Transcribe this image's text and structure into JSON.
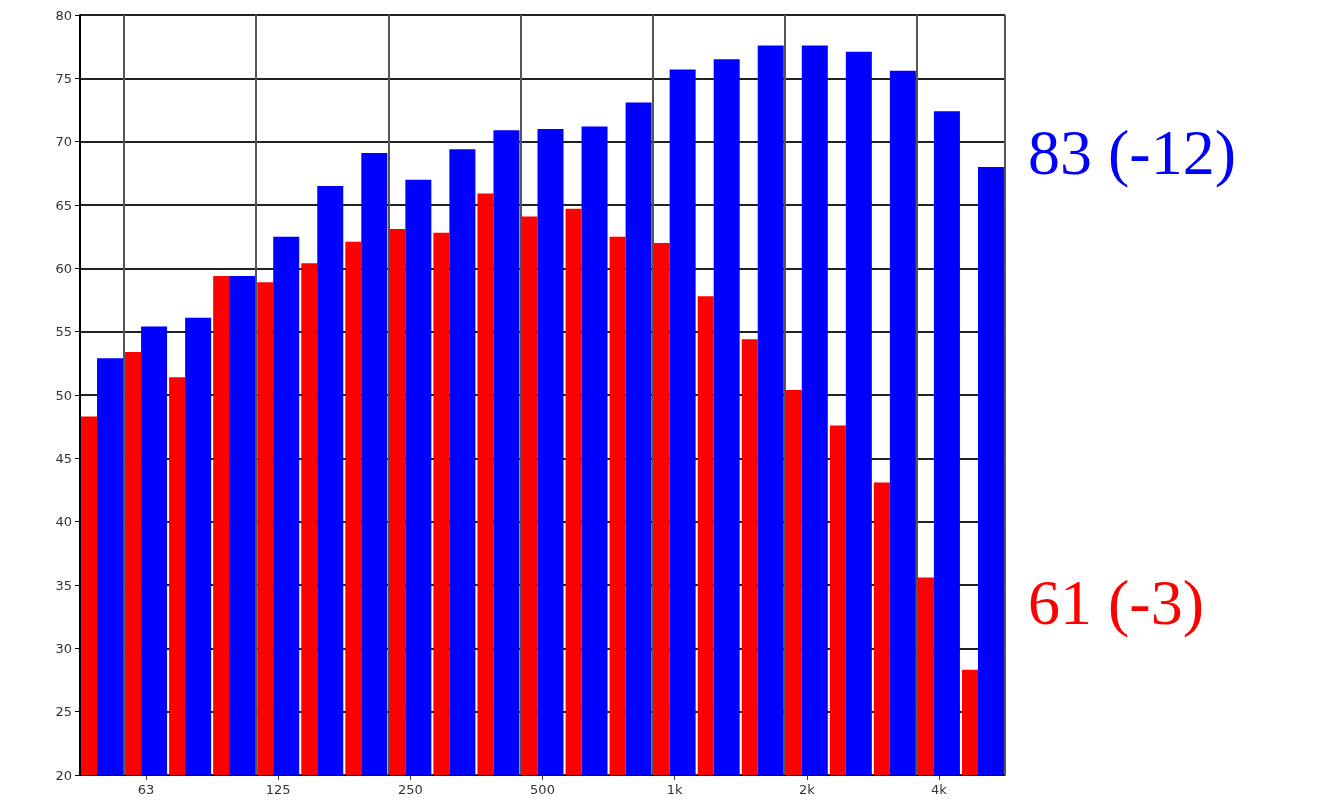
{
  "chart_data": {
    "type": "bar",
    "categories": [
      null,
      "63",
      null,
      null,
      "125",
      null,
      null,
      "250",
      null,
      null,
      "500",
      null,
      null,
      "1k",
      null,
      null,
      "2k",
      null,
      null,
      "4k",
      null
    ],
    "series": [
      {
        "color": "#ff0000",
        "values": [
          48.3,
          53.4,
          51.4,
          59.4,
          58.9,
          60.4,
          62.1,
          63.1,
          62.8,
          65.9,
          64.1,
          64.7,
          62.5,
          62.0,
          57.8,
          54.4,
          50.4,
          47.6,
          43.1,
          35.6,
          28.3
        ]
      },
      {
        "color": "#0000ff",
        "values": [
          52.9,
          55.4,
          56.1,
          59.4,
          62.5,
          66.5,
          69.1,
          67.0,
          69.4,
          70.9,
          71.0,
          71.2,
          73.1,
          75.7,
          76.5,
          77.6,
          77.6,
          77.1,
          75.6,
          72.4,
          68.0
        ]
      }
    ],
    "ylim": [
      20,
      80
    ],
    "yticks": [
      20,
      25,
      30,
      35,
      40,
      45,
      50,
      55,
      60,
      65,
      70,
      75,
      80
    ],
    "grid": true,
    "annotations": [
      "83 (-12)",
      "61 (-3)"
    ]
  }
}
